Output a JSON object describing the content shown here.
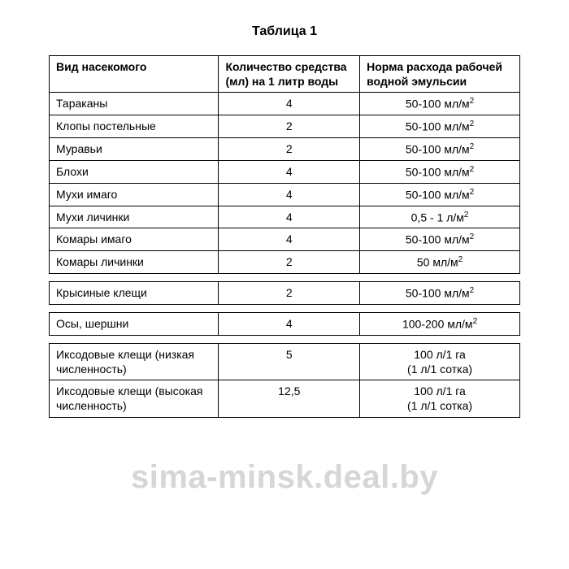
{
  "title": "Таблица 1",
  "columns": [
    "Вид насекомого",
    "Количество средства (мл) на 1 литр воды",
    "Норма расхода рабочей водной эмульсии"
  ],
  "groups": [
    [
      {
        "insect": "Тараканы",
        "amount": "4",
        "rate": "50-100 мл/м",
        "sup": "2"
      },
      {
        "insect": "Клопы постельные",
        "amount": "2",
        "rate": "50-100 мл/м",
        "sup": "2"
      },
      {
        "insect": "Муравьи",
        "amount": "2",
        "rate": "50-100 мл/м",
        "sup": "2"
      },
      {
        "insect": "Блохи",
        "amount": "4",
        "rate": "50-100 мл/м",
        "sup": "2"
      },
      {
        "insect": "Мухи имаго",
        "amount": "4",
        "rate": "50-100 мл/м",
        "sup": "2"
      },
      {
        "insect": "Мухи личинки",
        "amount": "4",
        "rate": "0,5 - 1 л/м",
        "sup": "2"
      },
      {
        "insect": "Комары имаго",
        "amount": "4",
        "rate": "50-100 мл/м",
        "sup": "2"
      },
      {
        "insect": "Комары личинки",
        "amount": "2",
        "rate": "50 мл/м",
        "sup": "2"
      }
    ],
    [
      {
        "insect": "Крысиные клещи",
        "amount": "2",
        "rate": "50-100 мл/м",
        "sup": "2"
      }
    ],
    [
      {
        "insect": "Осы, шершни",
        "amount": "4",
        "rate": "100-200 мл/м",
        "sup": "2"
      }
    ],
    [
      {
        "insect": "Иксодовые клещи (низкая численность)",
        "amount": "5",
        "rate": "100 л/1 га",
        "rate2": "(1 л/1 сотка)"
      },
      {
        "insect": "Иксодовые клещи (высокая численность)",
        "amount": "12,5",
        "rate": "100 л/1 га",
        "rate2": "(1 л/1 сотка)"
      }
    ]
  ],
  "watermark": "sima-minsk.deal.by",
  "style": {
    "page_bg": "#ffffff",
    "text_color": "#000000",
    "border_color": "#000000",
    "title_fontsize": 16,
    "body_fontsize": 14,
    "watermark_color": "rgba(180,180,180,0.55)",
    "watermark_fontsize": 40,
    "col_widths_pct": [
      36,
      30,
      34
    ]
  }
}
